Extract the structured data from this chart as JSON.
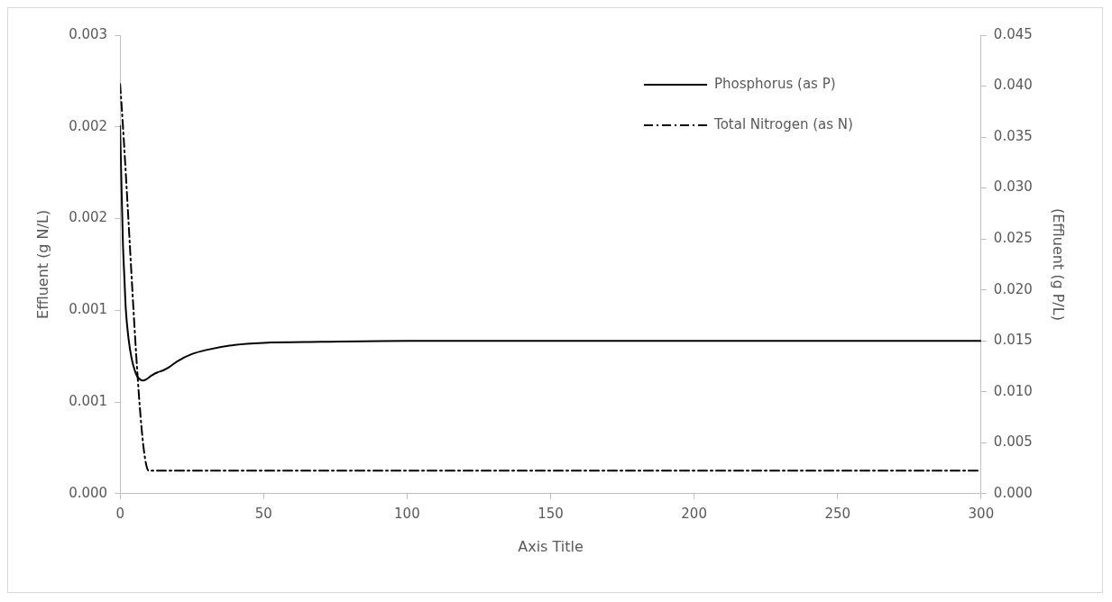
{
  "chart_data": {
    "type": "line",
    "xlabel": "Axis Title",
    "ylabel": "Effluent (g N/L)",
    "y2label": "(Effluent (g P/L)",
    "xlim": [
      0,
      300
    ],
    "xticks": [
      0,
      50,
      100,
      150,
      200,
      250,
      300
    ],
    "ylim": [
      0,
      0.003
    ],
    "yticks": [
      {
        "value": 0,
        "label": "0.000"
      },
      {
        "value": 0.0006,
        "label": "0.001"
      },
      {
        "value": 0.0012,
        "label": "0.001"
      },
      {
        "value": 0.0018,
        "label": "0.002"
      },
      {
        "value": 0.0024,
        "label": "0.002"
      },
      {
        "value": 0.003,
        "label": "0.003"
      }
    ],
    "y2lim": [
      0,
      0.045
    ],
    "y2ticks": [
      {
        "value": 0,
        "label": "0.000"
      },
      {
        "value": 0.005,
        "label": "0.005"
      },
      {
        "value": 0.01,
        "label": "0.010"
      },
      {
        "value": 0.015,
        "label": "0.015"
      },
      {
        "value": 0.02,
        "label": "0.020"
      },
      {
        "value": 0.025,
        "label": "0.025"
      },
      {
        "value": 0.03,
        "label": "0.030"
      },
      {
        "value": 0.035,
        "label": "0.035"
      },
      {
        "value": 0.04,
        "label": "0.040"
      },
      {
        "value": 0.045,
        "label": "0.045"
      }
    ],
    "grid": false,
    "legend": "top right",
    "marker": "none",
    "series": [
      {
        "name": "Phosphorus (as P)",
        "color": "#000000",
        "axis": "y2",
        "line_style": "solid",
        "x": [
          0,
          1,
          1.5,
          2,
          3,
          4,
          5,
          6,
          7,
          8,
          9,
          11,
          13,
          15,
          17,
          20,
          25,
          30,
          40,
          50,
          70,
          100,
          150,
          200,
          300
        ],
        "values": [
          0.0361,
          0.0245,
          0.0212,
          0.0181,
          0.0151,
          0.0133,
          0.0122,
          0.0115,
          0.0112,
          0.0111,
          0.0112,
          0.0116,
          0.0119,
          0.0121,
          0.0124,
          0.013,
          0.0137,
          0.0141,
          0.0146,
          0.0148,
          0.0149,
          0.015,
          0.015,
          0.015,
          0.015
        ]
      },
      {
        "name": "Total Nitrogen (as N)",
        "color": "#000000",
        "axis": "y",
        "line_style": "dashed",
        "x": [
          0,
          10,
          300
        ],
        "values": [
          0.00268,
          0.00015,
          0.00015
        ]
      }
    ]
  }
}
